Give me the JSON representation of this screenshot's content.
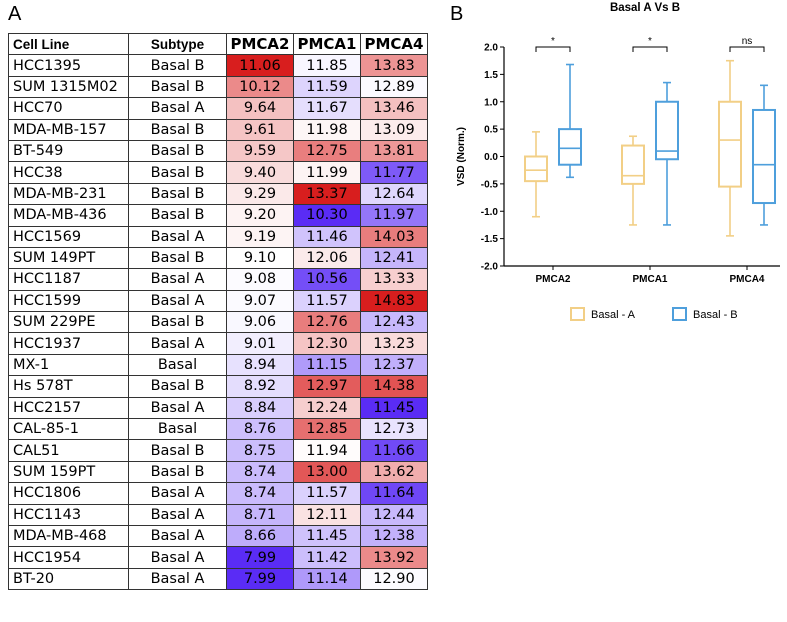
{
  "panels": {
    "left_letter": "A",
    "right_letter": "B"
  },
  "chart_data": [
    {
      "type": "heatmap",
      "title": "",
      "row_header": "Cell Line",
      "subtype_header": "Subtype",
      "columns": [
        "PMCA2",
        "PMCA1",
        "PMCA4"
      ],
      "rows": [
        {
          "cell_line": "HCC1395",
          "subtype": "Basal B",
          "values": [
            "11.06",
            "11.85",
            "13.83"
          ]
        },
        {
          "cell_line": "SUM 1315M02",
          "subtype": "Basal B",
          "values": [
            "10.12",
            "11.59",
            "12.89"
          ]
        },
        {
          "cell_line": "HCC70",
          "subtype": "Basal A",
          "values": [
            "9.64",
            "11.67",
            "13.46"
          ]
        },
        {
          "cell_line": "MDA-MB-157",
          "subtype": "Basal B",
          "values": [
            "9.61",
            "11.98",
            "13.09"
          ]
        },
        {
          "cell_line": "BT-549",
          "subtype": "Basal B",
          "values": [
            "9.59",
            "12.75",
            "13.81"
          ]
        },
        {
          "cell_line": "HCC38",
          "subtype": "Basal B",
          "values": [
            "9.40",
            "11.99",
            "11.77"
          ]
        },
        {
          "cell_line": "MDA-MB-231",
          "subtype": "Basal B",
          "values": [
            "9.29",
            "13.37",
            "12.64"
          ]
        },
        {
          "cell_line": "MDA-MB-436",
          "subtype": "Basal B",
          "values": [
            "9.20",
            "10.30",
            "11.97"
          ]
        },
        {
          "cell_line": "HCC1569",
          "subtype": "Basal A",
          "values": [
            "9.19",
            "11.46",
            "14.03"
          ]
        },
        {
          "cell_line": "SUM 149PT",
          "subtype": "Basal B",
          "values": [
            "9.10",
            "12.06",
            "12.41"
          ]
        },
        {
          "cell_line": "HCC1187",
          "subtype": "Basal A",
          "values": [
            "9.08",
            "10.56",
            "13.33"
          ]
        },
        {
          "cell_line": "HCC1599",
          "subtype": "Basal A",
          "values": [
            "9.07",
            "11.57",
            "14.83"
          ]
        },
        {
          "cell_line": "SUM 229PE",
          "subtype": "Basal B",
          "values": [
            "9.06",
            "12.76",
            "12.43"
          ]
        },
        {
          "cell_line": "HCC1937",
          "subtype": "Basal A",
          "values": [
            "9.01",
            "12.30",
            "13.23"
          ]
        },
        {
          "cell_line": "MX-1",
          "subtype": "Basal",
          "values": [
            "8.94",
            "11.15",
            "12.37"
          ]
        },
        {
          "cell_line": "Hs 578T",
          "subtype": "Basal B",
          "values": [
            "8.92",
            "12.97",
            "14.38"
          ]
        },
        {
          "cell_line": "HCC2157",
          "subtype": "Basal A",
          "values": [
            "8.84",
            "12.24",
            "11.45"
          ]
        },
        {
          "cell_line": "CAL-85-1",
          "subtype": "Basal",
          "values": [
            "8.76",
            "12.85",
            "12.73"
          ]
        },
        {
          "cell_line": "CAL51",
          "subtype": "Basal B",
          "values": [
            "8.75",
            "11.94",
            "11.66"
          ]
        },
        {
          "cell_line": "SUM 159PT",
          "subtype": "Basal B",
          "values": [
            "8.74",
            "13.00",
            "13.62"
          ]
        },
        {
          "cell_line": "HCC1806",
          "subtype": "Basal A",
          "values": [
            "8.74",
            "11.57",
            "11.64"
          ]
        },
        {
          "cell_line": "HCC1143",
          "subtype": "Basal A",
          "values": [
            "8.71",
            "12.11",
            "12.44"
          ]
        },
        {
          "cell_line": "MDA-MB-468",
          "subtype": "Basal A",
          "values": [
            "8.66",
            "11.45",
            "12.38"
          ]
        },
        {
          "cell_line": "HCC1954",
          "subtype": "Basal A",
          "values": [
            "7.99",
            "11.42",
            "13.92"
          ]
        },
        {
          "cell_line": "BT-20",
          "subtype": "Basal A",
          "values": [
            "7.99",
            "11.14",
            "12.90"
          ]
        }
      ],
      "color_scale": {
        "low": "#5a2cf5",
        "mid": "#ffffff",
        "high": "#d81e1e"
      }
    },
    {
      "type": "box",
      "title": "Basal A Vs B",
      "xlabel": "",
      "ylabel": "VSD (Norm.)",
      "categories": [
        "PMCA2",
        "PMCA1",
        "PMCA4"
      ],
      "ylim": [
        -2.0,
        2.0
      ],
      "yticks": [
        "2.0",
        "1.5",
        "1.0",
        "0.5",
        "0.0",
        "-0.5",
        "-1.0",
        "-1.5",
        "-2.0"
      ],
      "significance": [
        "*",
        "*",
        "ns"
      ],
      "series": [
        {
          "name": "Basal - A",
          "color": "#f2cf86",
          "boxes": [
            {
              "min": -1.1,
              "q1": -0.45,
              "median": -0.25,
              "q3": 0.0,
              "max": 0.45
            },
            {
              "min": -1.25,
              "q1": -0.5,
              "median": -0.35,
              "q3": 0.2,
              "max": 0.37
            },
            {
              "min": -1.45,
              "q1": -0.55,
              "median": 0.3,
              "q3": 1.0,
              "max": 1.75
            }
          ]
        },
        {
          "name": "Basal - B",
          "color": "#4e9fdc",
          "boxes": [
            {
              "min": -0.38,
              "q1": -0.15,
              "median": 0.15,
              "q3": 0.5,
              "max": 1.68
            },
            {
              "min": -1.25,
              "q1": -0.05,
              "median": 0.1,
              "q3": 1.0,
              "max": 1.35
            },
            {
              "min": -1.25,
              "q1": -0.85,
              "median": -0.15,
              "q3": 0.85,
              "max": 1.3
            }
          ]
        }
      ]
    }
  ]
}
